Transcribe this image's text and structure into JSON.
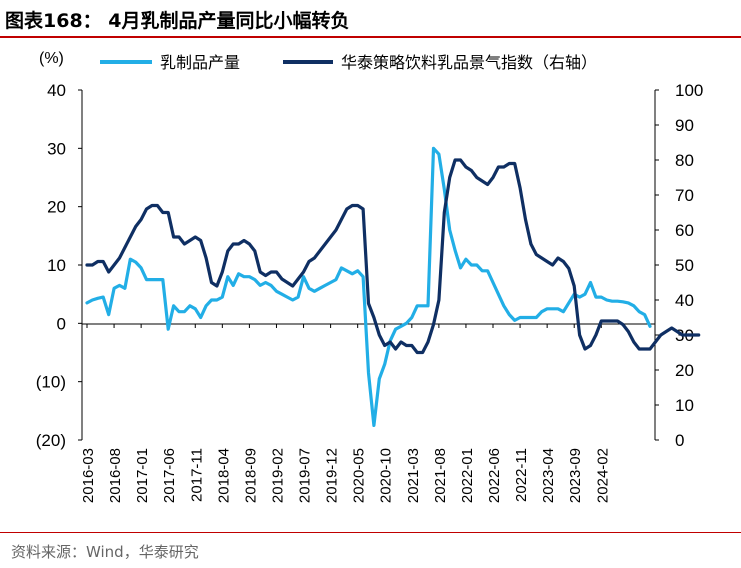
{
  "title": "图表168：  4月乳制品产量同比小幅转负",
  "source": "资料来源：Wind，华泰研究",
  "chart_data": {
    "type": "line",
    "y_left_unit": "(%)",
    "y_left_ticks": [
      "40",
      "30",
      "20",
      "10",
      "0",
      "(10)",
      "(20)"
    ],
    "y_left_range": [
      -20,
      40
    ],
    "y_right_ticks": [
      "100",
      "90",
      "80",
      "70",
      "60",
      "50",
      "40",
      "30",
      "20",
      "10",
      "0"
    ],
    "y_right_range": [
      0,
      100
    ],
    "x_tick_labels": [
      "2016-03",
      "2016-08",
      "2017-01",
      "2017-06",
      "2017-11",
      "2018-04",
      "2018-09",
      "2019-02",
      "2019-07",
      "2019-12",
      "2020-05",
      "2020-10",
      "2021-03",
      "2021-08",
      "2022-01",
      "2022-06",
      "2022-11",
      "2023-04",
      "2023-09",
      "2024-02"
    ],
    "x_start": "2016-03",
    "x_end": "2024-04",
    "legend_position": "top",
    "grid": false,
    "series": [
      {
        "name": "乳制品产量",
        "axis": "left",
        "color": "#22aee6",
        "values": [
          3.5,
          4,
          4.3,
          4.5,
          1.5,
          6,
          6.5,
          6,
          11,
          10.5,
          9.5,
          7.5,
          7.5,
          7.5,
          7.5,
          -1,
          3,
          2,
          2,
          3,
          2.5,
          1,
          3,
          4,
          4,
          4.5,
          8,
          6.5,
          8.5,
          8,
          8,
          7.5,
          6.5,
          7,
          6.5,
          5.5,
          5,
          4.5,
          4,
          4.5,
          8,
          6,
          5.5,
          6,
          6.5,
          7,
          7.5,
          9.5,
          9,
          8.5,
          9,
          8,
          -8.5,
          -17.5,
          -9.5,
          -7,
          -3,
          -1,
          -0.5,
          0,
          1,
          3,
          3,
          3,
          30,
          29,
          23,
          16,
          12.5,
          9.5,
          11,
          10,
          10,
          9,
          9,
          7,
          5,
          3,
          1.5,
          0.5,
          1,
          1,
          1,
          1,
          2,
          2.5,
          2.5,
          2.5,
          2,
          3.5,
          5,
          4.5,
          5,
          7,
          4.5,
          4.5,
          4,
          3.8,
          3.8,
          3.7,
          3.5,
          3,
          2,
          1.5,
          -0.5
        ]
      },
      {
        "name": "华泰策略饮料乳品景气指数（右轴）",
        "axis": "right",
        "color": "#0f2f63",
        "values": [
          50,
          50,
          51,
          51,
          48,
          50,
          52,
          55,
          58,
          61,
          63,
          66,
          67,
          67,
          65,
          65,
          58,
          58,
          56,
          57,
          58,
          57,
          52,
          45,
          44,
          48,
          54,
          56,
          56,
          57,
          56,
          54,
          48,
          47,
          48,
          48,
          46,
          45,
          44,
          46,
          48,
          51,
          52,
          54,
          56,
          58,
          60,
          63,
          66,
          67,
          67,
          66,
          39,
          35,
          30,
          27,
          28,
          26,
          28,
          27,
          27,
          25,
          25,
          28,
          33,
          40,
          65,
          75,
          80,
          80,
          78,
          77,
          75,
          74,
          73,
          75,
          78,
          78,
          79,
          79,
          72,
          63,
          56,
          53,
          52,
          51,
          50,
          52,
          51,
          49,
          44,
          30,
          26,
          27,
          30,
          34,
          34,
          34,
          34,
          33,
          31,
          28,
          26,
          26,
          26,
          28,
          30,
          31,
          32,
          31,
          30,
          30,
          30,
          30
        ]
      }
    ]
  }
}
